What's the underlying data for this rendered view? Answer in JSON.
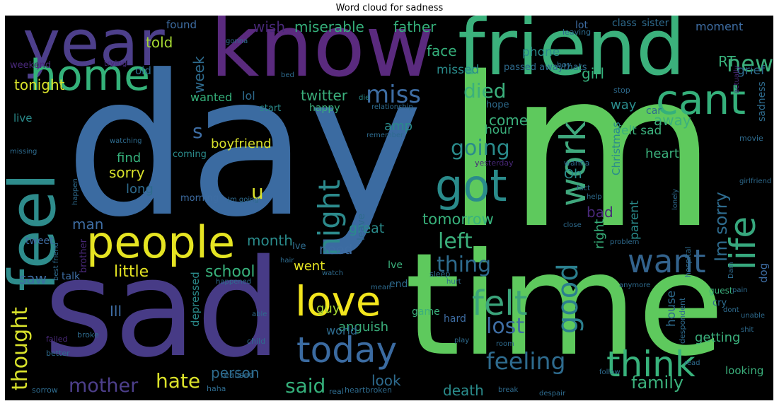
{
  "title": "Word cloud for sadness",
  "colors": {
    "background": "#000000",
    "viridis": [
      "#440154",
      "#482878",
      "#3e4a89",
      "#31688e",
      "#26828e",
      "#1f9e89",
      "#35b779",
      "#6ece58",
      "#b5de2b",
      "#fde725"
    ]
  },
  "words": [
    {
      "text": "day",
      "color": "#3b6ba1"
    },
    {
      "text": "Im",
      "color": "#5ec95d"
    },
    {
      "text": "time",
      "color": "#5ec95d"
    },
    {
      "text": "sad",
      "color": "#473b86"
    },
    {
      "text": "know",
      "color": "#5a2a7e"
    },
    {
      "text": "friend",
      "color": "#3bb17c"
    },
    {
      "text": "year",
      "color": "#4d3f8b"
    },
    {
      "text": "feel",
      "color": "#2e8c8c"
    },
    {
      "text": "people",
      "color": "#e5e422"
    },
    {
      "text": "home",
      "color": "#34b27a"
    },
    {
      "text": "cant",
      "color": "#35b07b"
    },
    {
      "text": "got",
      "color": "#2a8b8b"
    },
    {
      "text": "work",
      "color": "#3fa87d"
    },
    {
      "text": "love",
      "color": "#f2e51d"
    },
    {
      "text": "today",
      "color": "#3b6ba1"
    },
    {
      "text": "think",
      "color": "#38b27c"
    },
    {
      "text": "life",
      "color": "#37a87e"
    },
    {
      "text": "want",
      "color": "#33638d"
    },
    {
      "text": "night",
      "color": "#2c8a8c"
    },
    {
      "text": "felt",
      "color": "#3ba47b"
    },
    {
      "text": "good",
      "color": "#2b7f8e"
    },
    {
      "text": "feeling",
      "color": "#2e6b8e"
    },
    {
      "text": "miss",
      "color": "#3e6da3"
    },
    {
      "text": "died",
      "color": "#3bb07c"
    },
    {
      "text": "new",
      "color": "#3bb07c"
    },
    {
      "text": "lost",
      "color": "#3e6da3"
    },
    {
      "text": "mother",
      "color": "#4d3f8b"
    },
    {
      "text": "hate",
      "color": "#dbe22a"
    },
    {
      "text": "said",
      "color": "#35b07b"
    },
    {
      "text": "thought",
      "color": "#d8e12b"
    },
    {
      "text": "going",
      "color": "#2a8b8b"
    },
    {
      "text": "left",
      "color": "#3bb07c"
    },
    {
      "text": "thing",
      "color": "#2e6b8e"
    },
    {
      "text": "family",
      "color": "#3bb07c"
    },
    {
      "text": "death",
      "color": "#2a8b8b"
    },
    {
      "text": "look",
      "color": "#2e6b8e"
    },
    {
      "text": "person",
      "color": "#2e6b8e"
    },
    {
      "text": "little",
      "color": "#e5e422"
    },
    {
      "text": "school",
      "color": "#38b27c"
    },
    {
      "text": "Im sorry",
      "color": "#2e6b8e"
    },
    {
      "text": "tomorrow",
      "color": "#38b27c"
    },
    {
      "text": "great",
      "color": "#2a8b8b"
    },
    {
      "text": "need",
      "color": "#3e6da3"
    },
    {
      "text": "went",
      "color": "#e5e422"
    },
    {
      "text": "RT",
      "color": "#38b27c"
    },
    {
      "text": "face",
      "color": "#35b07b"
    },
    {
      "text": "father",
      "color": "#35b07b"
    },
    {
      "text": "miserable",
      "color": "#35b07b"
    },
    {
      "text": "wish",
      "color": "#482878"
    },
    {
      "text": "told",
      "color": "#a5d832"
    },
    {
      "text": "week",
      "color": "#2e6b8e"
    },
    {
      "text": "twitter",
      "color": "#3bb07c"
    },
    {
      "text": "tonight",
      "color": "#d8e12b"
    },
    {
      "text": "girl",
      "color": "#35b07b"
    },
    {
      "text": "amp",
      "color": "#2a8b8b"
    },
    {
      "text": "come",
      "color": "#3bb07c"
    },
    {
      "text": "sorry",
      "color": "#d8e12b"
    },
    {
      "text": "boyfriend",
      "color": "#d8e12b"
    },
    {
      "text": "find",
      "color": "#35b07b"
    },
    {
      "text": "long",
      "color": "#2e6b8e"
    },
    {
      "text": "man",
      "color": "#3e6da3"
    },
    {
      "text": "month",
      "color": "#2a8b8b"
    },
    {
      "text": "saw",
      "color": "#3e6da3"
    },
    {
      "text": "Ill",
      "color": "#3e6da3"
    },
    {
      "text": "guy",
      "color": "#a5d832"
    },
    {
      "text": "anguish",
      "color": "#3bb07c"
    },
    {
      "text": "world",
      "color": "#2e6b8e"
    },
    {
      "text": "end",
      "color": "#2e6b8e"
    },
    {
      "text": "game",
      "color": "#3bb07c"
    },
    {
      "text": "depressed",
      "color": "#2a8b8b"
    },
    {
      "text": "s",
      "color": "#3e6da3"
    },
    {
      "text": "u",
      "color": "#dbe22a"
    },
    {
      "text": "hour",
      "color": "#3bb07c"
    },
    {
      "text": "way",
      "color": "#2a8b8b"
    },
    {
      "text": "bad",
      "color": "#482878"
    },
    {
      "text": "right",
      "color": "#38b27c"
    },
    {
      "text": "away",
      "color": "#3bb07c"
    },
    {
      "text": "heart",
      "color": "#3bb07c"
    },
    {
      "text": "Oh",
      "color": "#2a8b8b"
    },
    {
      "text": "felt sad",
      "color": "#3bb07c"
    },
    {
      "text": "parent",
      "color": "#2a8b8b"
    },
    {
      "text": "phone",
      "color": "#2a8b8b"
    },
    {
      "text": "missed",
      "color": "#2a8b8b"
    },
    {
      "text": "grief",
      "color": "#2e6b8e"
    },
    {
      "text": "old",
      "color": "#2e6b8e"
    },
    {
      "text": "found",
      "color": "#3e6da3"
    },
    {
      "text": "wanted",
      "color": "#35b07b"
    },
    {
      "text": "lol",
      "color": "#2e6b8e"
    },
    {
      "text": "live",
      "color": "#2a8b8b"
    },
    {
      "text": "happy",
      "color": "#3bb07c"
    },
    {
      "text": "sadness",
      "color": "#2e6b8e"
    },
    {
      "text": "house",
      "color": "#2e6b8e"
    },
    {
      "text": "getting",
      "color": "#3bb07c"
    },
    {
      "text": "looking",
      "color": "#3bb07c"
    },
    {
      "text": "dog",
      "color": "#3e6da3"
    },
    {
      "text": "cry",
      "color": "#2e6b8e"
    },
    {
      "text": "Ive",
      "color": "#3bb07c"
    },
    {
      "text": "leave",
      "color": "#2e6b8e"
    },
    {
      "text": "hard",
      "color": "#3e6da3"
    },
    {
      "text": "Christmas",
      "color": "#2a8b8b"
    },
    {
      "text": "coming",
      "color": "#2a8b8b"
    },
    {
      "text": "morning",
      "color": "#3e6da3"
    },
    {
      "text": "tweet",
      "color": "#3e6da3"
    },
    {
      "text": "talk",
      "color": "#3e6da3"
    },
    {
      "text": "moment",
      "color": "#3e6da3"
    },
    {
      "text": "class",
      "color": "#2e6b8e"
    },
    {
      "text": "sister",
      "color": "#2e6b8e"
    },
    {
      "text": "lot",
      "color": "#3e6da3"
    },
    {
      "text": "weekend",
      "color": "#482878"
    },
    {
      "text": "passed awaythats",
      "color": "#2e6b8e"
    },
    {
      "text": "hope",
      "color": "#2e6b8e"
    },
    {
      "text": "car",
      "color": "#2e6b8e"
    },
    {
      "text": "yesterday",
      "color": "#482878"
    },
    {
      "text": "brother",
      "color": "#482878"
    },
    {
      "text": "start",
      "color": "#2a8b8b"
    },
    {
      "text": "relationship",
      "color": "#2e6b8e"
    },
    {
      "text": "wanna",
      "color": "#2e6b8e"
    },
    {
      "text": "remember",
      "color": "#2e6b8e"
    },
    {
      "text": "watching",
      "color": "#2e6b8e"
    },
    {
      "text": "missing",
      "color": "#2e6b8e"
    },
    {
      "text": "bed",
      "color": "#2e6b8e"
    },
    {
      "text": "leaving",
      "color": "#2e6b8e"
    },
    {
      "text": "gonna",
      "color": "#2e6b8e"
    },
    {
      "text": "trying",
      "color": "#482878"
    },
    {
      "text": "boy",
      "color": "#2e6b8e"
    },
    {
      "text": "die",
      "color": "#2a8b8b"
    },
    {
      "text": "movie",
      "color": "#2e6b8e"
    },
    {
      "text": "actually",
      "color": "#482878"
    },
    {
      "text": "stop",
      "color": "#2e6b8e"
    },
    {
      "text": "girlfriend",
      "color": "#2e6b8e"
    },
    {
      "text": "help",
      "color": "#2e6b8e"
    },
    {
      "text": "fact",
      "color": "#2e6b8e"
    },
    {
      "text": "sleep",
      "color": "#2e6b8e"
    },
    {
      "text": "hospital",
      "color": "#2e6b8e"
    },
    {
      "text": "problem",
      "color": "#2e6b8e"
    },
    {
      "text": "lonely",
      "color": "#2e6b8e"
    },
    {
      "text": "close",
      "color": "#2e6b8e"
    },
    {
      "text": "hair",
      "color": "#2e6b8e"
    },
    {
      "text": "best friend",
      "color": "#2e6b8e"
    },
    {
      "text": "happened",
      "color": "#2e6b8e"
    },
    {
      "text": "watch",
      "color": "#2e6b8e"
    },
    {
      "text": "mean",
      "color": "#2e6b8e"
    },
    {
      "text": "hurt",
      "color": "#2e6b8e"
    },
    {
      "text": "guest",
      "color": "#3bb07c"
    },
    {
      "text": "Dam",
      "color": "#2e6b8e"
    },
    {
      "text": "dont",
      "color": "#2e6b8e"
    },
    {
      "text": "pain",
      "color": "#2e6b8e"
    },
    {
      "text": "anymore",
      "color": "#2e6b8e"
    },
    {
      "text": "able",
      "color": "#2e6b8e"
    },
    {
      "text": "child",
      "color": "#2e6b8e"
    },
    {
      "text": "failed",
      "color": "#482878"
    },
    {
      "text": "broke",
      "color": "#2e6b8e"
    },
    {
      "text": "better",
      "color": "#2e6b8e"
    },
    {
      "text": "realised",
      "color": "#2e6b8e"
    },
    {
      "text": "heartbroken",
      "color": "#2e6b8e"
    },
    {
      "text": "real",
      "color": "#2e6b8e"
    },
    {
      "text": "sorrow",
      "color": "#2e6b8e"
    },
    {
      "text": "haha",
      "color": "#2e6b8e"
    },
    {
      "text": "break",
      "color": "#2e6b8e"
    },
    {
      "text": "despair",
      "color": "#2e6b8e"
    },
    {
      "text": "room",
      "color": "#2e6b8e"
    },
    {
      "text": "play",
      "color": "#2e6b8e"
    },
    {
      "text": "despondent",
      "color": "#2e6b8e"
    },
    {
      "text": "follow",
      "color": "#2e6b8e"
    },
    {
      "text": "read",
      "color": "#2e6b8e"
    },
    {
      "text": "Im going",
      "color": "#2e6b8e"
    },
    {
      "text": "happen",
      "color": "#2e6b8e"
    },
    {
      "text": "unable",
      "color": "#2e6b8e"
    },
    {
      "text": "shit",
      "color": "#2e6b8e"
    },
    {
      "text": "Ive",
      "color": "#2e6b8e"
    }
  ]
}
